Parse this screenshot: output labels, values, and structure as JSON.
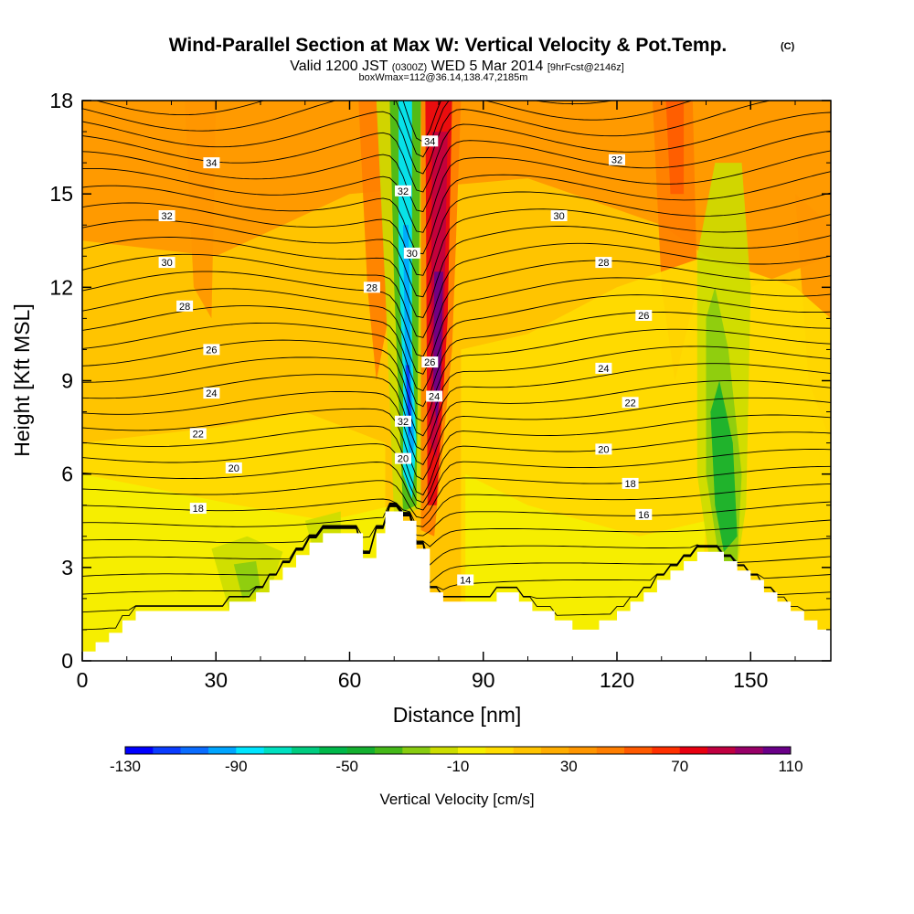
{
  "title": {
    "main": "Wind-Parallel Section at Max W: Vertical Velocity & Pot.Temp.",
    "main_suffix": "(C)",
    "valid_prefix": "Valid 1200 JST",
    "valid_utc": "(0300Z)",
    "valid_day": "WED 5 Mar 2014",
    "valid_fcst": "[9hrFcst@2146z]",
    "box": "boxWmax=112@36.14,138.47,2185m"
  },
  "chart_data": {
    "type": "heatmap",
    "xlabel": "Distance [nm]",
    "ylabel": "Height [Kft MSL]",
    "xlim": [
      0,
      168
    ],
    "ylim": [
      0,
      18
    ],
    "x_ticks": [
      "0",
      "30",
      "60",
      "90",
      "120",
      "150"
    ],
    "y_ticks": [
      "0",
      "3",
      "6",
      "9",
      "12",
      "15",
      "18"
    ],
    "colorbar": {
      "label": "Vertical Velocity [cm/s]",
      "tick_labels": [
        "-130",
        "-90",
        "-50",
        "-10",
        "30",
        "70",
        "110"
      ],
      "levels": [
        -130,
        -120,
        -110,
        -100,
        -90,
        -80,
        -70,
        -60,
        -50,
        -40,
        -30,
        -20,
        -10,
        0,
        10,
        20,
        30,
        40,
        50,
        60,
        70,
        80,
        90,
        100,
        110
      ],
      "colors": [
        "#0000ff",
        "#0a3cff",
        "#0a6cff",
        "#00a5ff",
        "#00e5ff",
        "#00e0c0",
        "#00cc80",
        "#00b84a",
        "#14b030",
        "#44b818",
        "#88cc10",
        "#ccdd00",
        "#f5f000",
        "#ffdd00",
        "#ffc400",
        "#ffad00",
        "#ff9600",
        "#ff7e00",
        "#ff5a00",
        "#ff3000",
        "#e80010",
        "#c00040",
        "#980068",
        "#6a0088"
      ]
    },
    "theta_contour_labels": [
      {
        "label": "34",
        "x": 29,
        "y": 16.0
      },
      {
        "label": "32",
        "x": 19,
        "y": 14.3
      },
      {
        "label": "30",
        "x": 19,
        "y": 12.8
      },
      {
        "label": "28",
        "x": 23,
        "y": 11.4
      },
      {
        "label": "26",
        "x": 29,
        "y": 10.0
      },
      {
        "label": "24",
        "x": 29,
        "y": 8.6
      },
      {
        "label": "22",
        "x": 26,
        "y": 7.3
      },
      {
        "label": "20",
        "x": 34,
        "y": 6.2
      },
      {
        "label": "18",
        "x": 26,
        "y": 4.9
      },
      {
        "label": "28",
        "x": 65,
        "y": 12.0
      },
      {
        "label": "32",
        "x": 72,
        "y": 15.1
      },
      {
        "label": "30",
        "x": 74,
        "y": 13.1
      },
      {
        "label": "34",
        "x": 78,
        "y": 16.7
      },
      {
        "label": "26",
        "x": 78,
        "y": 9.6
      },
      {
        "label": "24",
        "x": 79,
        "y": 8.5
      },
      {
        "label": "32",
        "x": 72,
        "y": 7.7
      },
      {
        "label": "20",
        "x": 72,
        "y": 6.5
      },
      {
        "label": "14",
        "x": 86,
        "y": 2.6
      },
      {
        "label": "32",
        "x": 120,
        "y": 16.1
      },
      {
        "label": "30",
        "x": 107,
        "y": 14.3
      },
      {
        "label": "28",
        "x": 117,
        "y": 12.8
      },
      {
        "label": "26",
        "x": 126,
        "y": 11.1
      },
      {
        "label": "24",
        "x": 117,
        "y": 9.4
      },
      {
        "label": "22",
        "x": 123,
        "y": 8.3
      },
      {
        "label": "20",
        "x": 117,
        "y": 6.8
      },
      {
        "label": "18",
        "x": 123,
        "y": 5.7
      },
      {
        "label": "16",
        "x": 126,
        "y": 4.7
      }
    ]
  }
}
